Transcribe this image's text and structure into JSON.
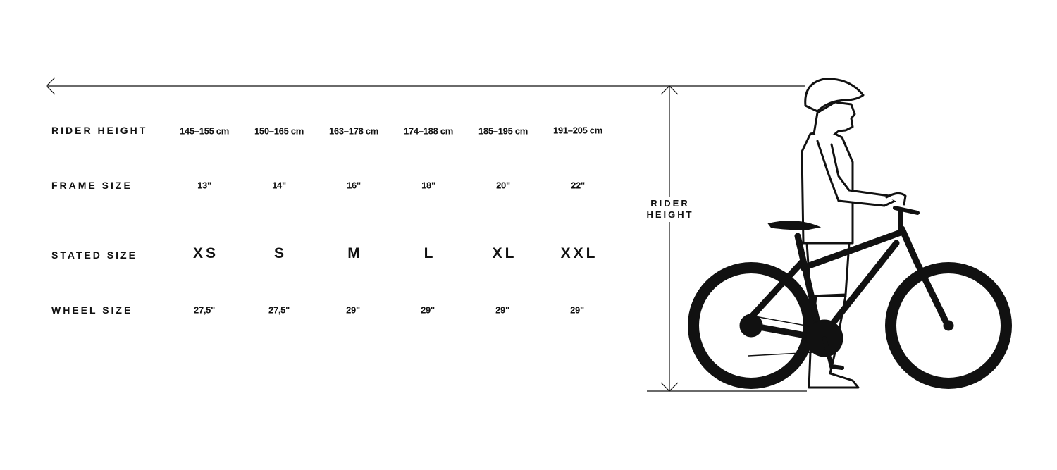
{
  "rows": [
    {
      "label": "RIDER HEIGHT",
      "values": [
        "145–155 cm",
        "150–165 cm",
        "163–178 cm",
        "174–188 cm",
        "185–195 cm",
        "191–205 cm"
      ]
    },
    {
      "label": "FRAME SIZE",
      "values": [
        "13\"",
        "14\"",
        "16\"",
        "18\"",
        "20\"",
        "22\""
      ]
    },
    {
      "label": "STATED SIZE",
      "values": [
        "XS",
        "S",
        "M",
        "L",
        "XL",
        "XXL"
      ]
    },
    {
      "label": "WHEEL SIZE",
      "values": [
        "27,5\"",
        "27,5\"",
        "29\"",
        "29\"",
        "29\"",
        "29\""
      ]
    }
  ],
  "figure": {
    "height_label_line1": "RIDER",
    "height_label_line2": "HEIGHT"
  },
  "colors": {
    "ink": "#111111",
    "background": "#ffffff"
  }
}
